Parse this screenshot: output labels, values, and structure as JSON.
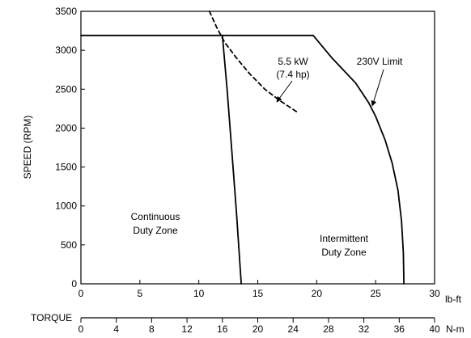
{
  "chart_data": {
    "type": "line",
    "ylabel": "SPEED (RPM)",
    "torque_label": "TORQUE",
    "x_unit_primary": "lb-ft",
    "x_unit_secondary": "N-m",
    "xlim": [
      0,
      30
    ],
    "ylim": [
      0,
      3500
    ],
    "x_ticks_primary": [
      0,
      5,
      10,
      15,
      20,
      25,
      30
    ],
    "x_ticks_secondary": [
      0,
      4,
      8,
      12,
      16,
      20,
      24,
      28,
      32,
      36,
      40
    ],
    "secondary_xlim": [
      0,
      40
    ],
    "y_ticks": [
      0,
      500,
      1000,
      1500,
      2000,
      2500,
      3000,
      3500
    ],
    "grid": false,
    "colors": {
      "line": "#000000",
      "background": "#ffffff"
    },
    "series": [
      {
        "id": "envelope",
        "style": "solid",
        "points": [
          [
            0,
            3190
          ],
          [
            19.7,
            3190
          ],
          [
            21.3,
            2900
          ],
          [
            23.3,
            2580
          ],
          [
            24.4,
            2330
          ],
          [
            25.0,
            2150
          ],
          [
            25.8,
            1850
          ],
          [
            26.4,
            1550
          ],
          [
            26.9,
            1200
          ],
          [
            27.2,
            800
          ],
          [
            27.35,
            400
          ],
          [
            27.4,
            0
          ]
        ]
      },
      {
        "id": "continuous-duty-boundary",
        "style": "solid",
        "points": [
          [
            12.0,
            3190
          ],
          [
            12.4,
            2500
          ],
          [
            12.8,
            1700
          ],
          [
            13.2,
            900
          ],
          [
            13.6,
            0
          ]
        ]
      },
      {
        "id": "constant-power-5.5kW",
        "style": "dashed",
        "points": [
          [
            10.9,
            3500
          ],
          [
            11.5,
            3300
          ],
          [
            12.2,
            3100
          ],
          [
            13.2,
            2900
          ],
          [
            14.3,
            2700
          ],
          [
            15.6,
            2500
          ],
          [
            16.9,
            2350
          ],
          [
            18.3,
            2210
          ]
        ]
      }
    ],
    "annotations": {
      "power_line1": "5.5 kW",
      "power_line2": "(7.4 hp)",
      "voltage_limit": "230V Limit",
      "continuous_line1": "Continuous",
      "continuous_line2": "Duty Zone",
      "intermittent_line1": "Intermittent",
      "intermittent_line2": "Duty Zone"
    }
  }
}
